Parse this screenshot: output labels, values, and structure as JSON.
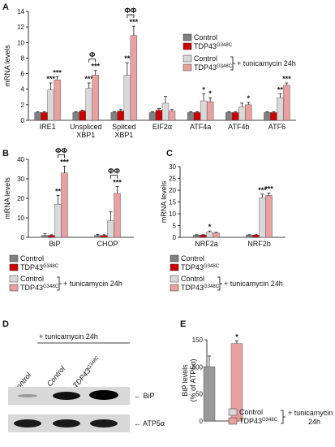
{
  "panel_letters": {
    "a": "A",
    "b": "B",
    "c": "C",
    "d": "D",
    "e": "E"
  },
  "colors": {
    "control": "#808080",
    "tdp": "#cc0000",
    "tun_control": "#d9d9d9",
    "tun_tdp": "#e8a0a0",
    "axis": "#000000"
  },
  "legend": {
    "control": "Control",
    "tdp_base": "TDP43",
    "tdp_sup": "G348C",
    "tunicamycin": "+ tunicamycin 24h"
  },
  "blot": {
    "header": "+ tunicamycin 24h",
    "lane_labels": [
      "Control",
      "Control",
      "TDP43"
    ],
    "lane_sup": "G348C",
    "band_labels": [
      "BiP",
      "ATP5α"
    ]
  },
  "chart_data": [
    {
      "panel": "A",
      "type": "bar",
      "ylabel": "mRNA levels",
      "ylim": [
        0,
        14
      ],
      "yticks": [
        0,
        2,
        4,
        6,
        8,
        10,
        12,
        14
      ],
      "categories": [
        "IRE1",
        "Unspliced XBP1",
        "Spliced XBP1",
        "EIF2α",
        "ATF4a",
        "ATF4b",
        "ATF6"
      ],
      "category_lines": [
        [
          "IRE1"
        ],
        [
          "Unspliced",
          "XBP1"
        ],
        [
          "Spliced",
          "XBP1"
        ],
        [
          "EIF2α"
        ],
        [
          "ATF4a"
        ],
        [
          "ATF4b"
        ],
        [
          "ATF6"
        ]
      ],
      "series": [
        {
          "name": "Control",
          "values": [
            1.0,
            1.0,
            1.0,
            1.0,
            1.0,
            1.0,
            1.0
          ],
          "err": [
            0.1,
            0.1,
            0.1,
            0.1,
            0.1,
            0.1,
            0.1
          ],
          "stars": [
            "",
            "",
            "",
            "",
            "",
            "",
            ""
          ]
        },
        {
          "name": "TDP43 G348C",
          "values": [
            1.0,
            1.2,
            1.2,
            1.3,
            1.0,
            1.0,
            1.0
          ],
          "err": [
            0.1,
            0.1,
            0.2,
            0.2,
            0.1,
            0.1,
            0.1
          ],
          "stars": [
            "",
            "",
            "",
            "",
            "",
            "",
            ""
          ]
        },
        {
          "name": "Control + tunicamycin 24h",
          "values": [
            3.9,
            4.1,
            5.8,
            2.2,
            2.5,
            1.7,
            2.9
          ],
          "err": [
            0.9,
            0.7,
            1.6,
            0.9,
            0.9,
            0.5,
            0.5
          ],
          "stars": [
            "***",
            "***",
            "**",
            "",
            "*",
            "",
            "**"
          ]
        },
        {
          "name": "TDP43 G348C + tunicamycin 24h",
          "values": [
            5.2,
            5.8,
            10.9,
            1.2,
            2.4,
            2.0,
            4.5
          ],
          "err": [
            0.4,
            0.6,
            1.2,
            0.2,
            0.5,
            0.3,
            0.3
          ],
          "stars": [
            "***",
            "***",
            "***",
            "",
            "*",
            "*",
            "***"
          ]
        }
      ],
      "brackets": [
        {
          "category": 1,
          "label": "Φ"
        },
        {
          "category": 2,
          "label": "ΦΦ"
        }
      ]
    },
    {
      "panel": "B",
      "type": "bar",
      "ylabel": "mRNA levels",
      "ylim": [
        0,
        40
      ],
      "yticks": [
        0,
        10,
        20,
        30,
        40
      ],
      "categories": [
        "BiP",
        "CHOP"
      ],
      "category_lines": [
        [
          "BiP"
        ],
        [
          "CHOP"
        ]
      ],
      "series": [
        {
          "name": "Control",
          "values": [
            1.0,
            1.0
          ],
          "err": [
            0.8,
            0.5
          ],
          "stars": [
            "",
            ""
          ]
        },
        {
          "name": "TDP43 G348C",
          "values": [
            1.0,
            1.0
          ],
          "err": [
            0.3,
            0.3
          ],
          "stars": [
            "",
            ""
          ]
        },
        {
          "name": "Control + tunicamycin 24h",
          "values": [
            17,
            8.5
          ],
          "err": [
            4.5,
            4.5
          ],
          "stars": [
            "**",
            ""
          ]
        },
        {
          "name": "TDP43 G348C + tunicamycin 24h",
          "values": [
            33,
            22.5
          ],
          "err": [
            3.5,
            3.5
          ],
          "stars": [
            "***",
            "***"
          ]
        }
      ],
      "brackets": [
        {
          "category": 0,
          "label": "ΦΦ"
        },
        {
          "category": 1,
          "label": "ΦΦ"
        }
      ]
    },
    {
      "panel": "C",
      "type": "bar",
      "ylabel": "mRNA levels",
      "ylim": [
        0,
        30
      ],
      "yticks": [
        0,
        5,
        10,
        15,
        20,
        25,
        30
      ],
      "categories": [
        "NRF2a",
        "NRF2b"
      ],
      "category_lines": [
        [
          "NRF2a"
        ],
        [
          "NRF2b"
        ]
      ],
      "series": [
        {
          "name": "Control",
          "values": [
            1.0,
            1.0
          ],
          "err": [
            0.1,
            0.1
          ],
          "stars": [
            "",
            ""
          ]
        },
        {
          "name": "TDP43 G348C",
          "values": [
            1.0,
            1.0
          ],
          "err": [
            0.1,
            0.1
          ],
          "stars": [
            "",
            ""
          ]
        },
        {
          "name": "Control + tunicamycin 24h",
          "values": [
            2.2,
            16.8
          ],
          "err": [
            0.5,
            1.5
          ],
          "stars": [
            "*",
            "***"
          ]
        },
        {
          "name": "TDP43 G348C + tunicamycin 24h",
          "values": [
            1.8,
            17.8
          ],
          "err": [
            0.3,
            1.0
          ],
          "stars": [
            "",
            "***"
          ]
        }
      ],
      "brackets": []
    },
    {
      "panel": "E",
      "type": "bar",
      "ylabel": "BiP levels (% of ATP5α)",
      "ylabel_lines": [
        "BiP levels",
        "(% of ATP5α)"
      ],
      "ylim": [
        0,
        150
      ],
      "yticks": [
        0,
        50,
        100,
        150
      ],
      "categories": [
        "Control",
        "TDP43 G348C"
      ],
      "category_lines": [
        [],
        []
      ],
      "series": [
        {
          "name": "Control + tunicamycin 24h",
          "values": [
            100,
            0
          ],
          "err": [
            20,
            0
          ],
          "stars": [
            "",
            ""
          ]
        },
        {
          "name": "TDP43 G348C + tunicamycin 24h",
          "values": [
            0,
            143
          ],
          "err": [
            0,
            5
          ],
          "stars": [
            "",
            "*"
          ]
        }
      ],
      "legend_labels": [
        "Control",
        "TDP43"
      ],
      "legend_sup": "G348C",
      "legend_side": "+ tunicamycin",
      "legend_side2": "24h",
      "brackets": []
    }
  ]
}
